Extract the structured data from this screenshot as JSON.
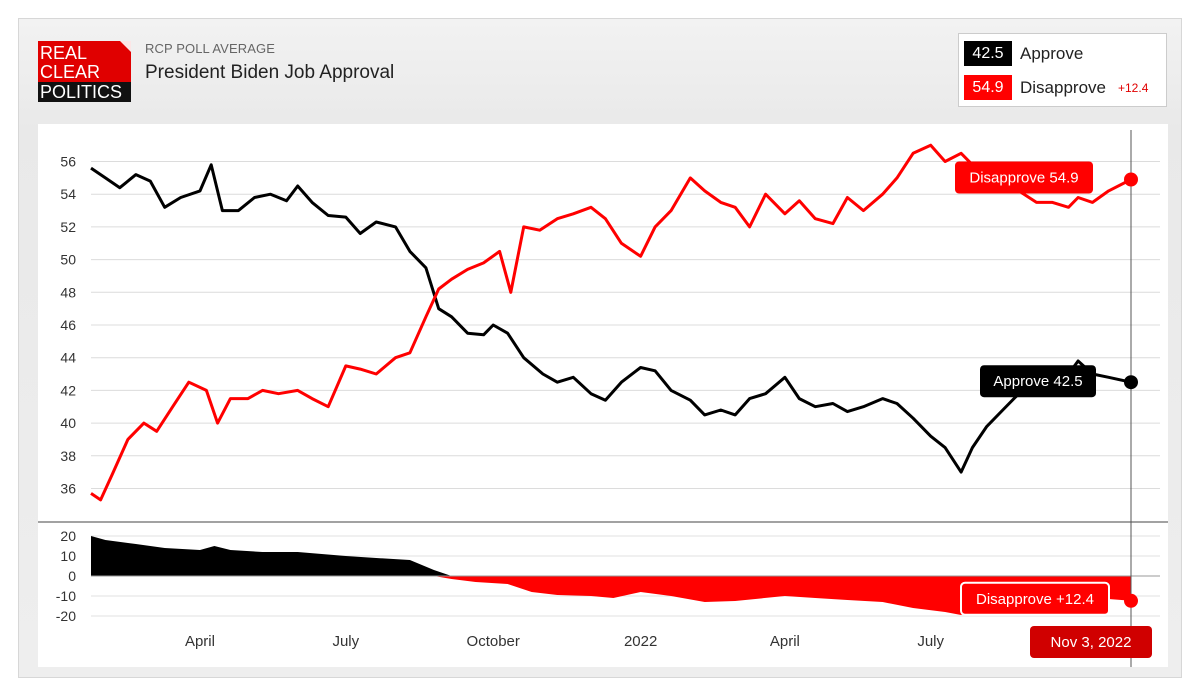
{
  "header": {
    "logo_lines": [
      "REAL",
      "CLEAR",
      "POLITICS"
    ],
    "supertitle": "RCP POLL AVERAGE",
    "title": "President Biden Job Approval"
  },
  "legend": {
    "approve": {
      "value": "42.5",
      "label": "Approve",
      "color": "#000000"
    },
    "disapprove": {
      "value": "54.9",
      "label": "Disapprove",
      "color": "#ff0000",
      "spread": "+12.4"
    }
  },
  "tooltips": {
    "disapprove": "Disapprove 54.9",
    "approve": "Approve 42.5",
    "spread": "Disapprove +12.4",
    "date": "Nov 3, 2022"
  },
  "chart_data": [
    {
      "type": "line",
      "title": "President Biden Job Approval",
      "ylim": [
        34.5,
        57.5
      ],
      "yticks": [
        36,
        38,
        40,
        42,
        44,
        46,
        48,
        50,
        52,
        54,
        56
      ],
      "grid": true,
      "x_tick_labels": [
        "April",
        "July",
        "October",
        "2022",
        "April",
        "July"
      ],
      "x_tick_dates": [
        "2021-04-01",
        "2021-07-01",
        "2021-10-01",
        "2022-01-01",
        "2022-04-01",
        "2022-07-01"
      ],
      "x_range": [
        "2021-01-23",
        "2022-11-03"
      ],
      "series": [
        {
          "name": "Approve",
          "color": "#000000",
          "points": [
            [
              "2021-01-23",
              55.6
            ],
            [
              "2021-02-01",
              55.0
            ],
            [
              "2021-02-10",
              54.4
            ],
            [
              "2021-02-20",
              55.2
            ],
            [
              "2021-03-01",
              54.8
            ],
            [
              "2021-03-10",
              53.2
            ],
            [
              "2021-03-20",
              53.8
            ],
            [
              "2021-04-01",
              54.2
            ],
            [
              "2021-04-08",
              55.8
            ],
            [
              "2021-04-15",
              53.0
            ],
            [
              "2021-04-25",
              53.0
            ],
            [
              "2021-05-05",
              53.8
            ],
            [
              "2021-05-15",
              54.0
            ],
            [
              "2021-05-25",
              53.6
            ],
            [
              "2021-06-01",
              54.5
            ],
            [
              "2021-06-10",
              53.5
            ],
            [
              "2021-06-20",
              52.7
            ],
            [
              "2021-07-01",
              52.6
            ],
            [
              "2021-07-10",
              51.6
            ],
            [
              "2021-07-20",
              52.3
            ],
            [
              "2021-08-01",
              52.0
            ],
            [
              "2021-08-10",
              50.5
            ],
            [
              "2021-08-20",
              49.5
            ],
            [
              "2021-08-28",
              47.0
            ],
            [
              "2021-09-05",
              46.5
            ],
            [
              "2021-09-15",
              45.5
            ],
            [
              "2021-09-25",
              45.4
            ],
            [
              "2021-10-01",
              46.0
            ],
            [
              "2021-10-10",
              45.5
            ],
            [
              "2021-10-20",
              44.0
            ],
            [
              "2021-11-01",
              43.0
            ],
            [
              "2021-11-10",
              42.5
            ],
            [
              "2021-11-20",
              42.8
            ],
            [
              "2021-12-01",
              41.8
            ],
            [
              "2021-12-10",
              41.4
            ],
            [
              "2021-12-20",
              42.5
            ],
            [
              "2022-01-01",
              43.4
            ],
            [
              "2022-01-10",
              43.2
            ],
            [
              "2022-01-20",
              42.0
            ],
            [
              "2022-02-01",
              41.4
            ],
            [
              "2022-02-10",
              40.5
            ],
            [
              "2022-02-20",
              40.8
            ],
            [
              "2022-03-01",
              40.5
            ],
            [
              "2022-03-10",
              41.5
            ],
            [
              "2022-03-20",
              41.8
            ],
            [
              "2022-04-01",
              42.8
            ],
            [
              "2022-04-10",
              41.5
            ],
            [
              "2022-04-20",
              41.0
            ],
            [
              "2022-05-01",
              41.2
            ],
            [
              "2022-05-10",
              40.7
            ],
            [
              "2022-05-20",
              41.0
            ],
            [
              "2022-06-01",
              41.5
            ],
            [
              "2022-06-10",
              41.2
            ],
            [
              "2022-06-20",
              40.3
            ],
            [
              "2022-07-01",
              39.2
            ],
            [
              "2022-07-10",
              38.5
            ],
            [
              "2022-07-20",
              37.0
            ],
            [
              "2022-07-27",
              38.5
            ],
            [
              "2022-08-05",
              39.8
            ],
            [
              "2022-08-15",
              40.8
            ],
            [
              "2022-08-25",
              41.8
            ],
            [
              "2022-09-05",
              42.3
            ],
            [
              "2022-09-15",
              42.5
            ],
            [
              "2022-09-25",
              43.0
            ],
            [
              "2022-10-01",
              43.8
            ],
            [
              "2022-10-10",
              43.0
            ],
            [
              "2022-10-20",
              42.8
            ],
            [
              "2022-11-03",
              42.5
            ]
          ]
        },
        {
          "name": "Disapprove",
          "color": "#ff0000",
          "points": [
            [
              "2021-01-23",
              35.7
            ],
            [
              "2021-01-29",
              35.3
            ],
            [
              "2021-02-05",
              36.8
            ],
            [
              "2021-02-15",
              39.0
            ],
            [
              "2021-02-25",
              40.0
            ],
            [
              "2021-03-05",
              39.5
            ],
            [
              "2021-03-15",
              41.0
            ],
            [
              "2021-03-25",
              42.5
            ],
            [
              "2021-04-05",
              42.0
            ],
            [
              "2021-04-12",
              40.0
            ],
            [
              "2021-04-20",
              41.5
            ],
            [
              "2021-05-01",
              41.5
            ],
            [
              "2021-05-10",
              42.0
            ],
            [
              "2021-05-20",
              41.8
            ],
            [
              "2021-06-01",
              42.0
            ],
            [
              "2021-06-10",
              41.5
            ],
            [
              "2021-06-20",
              41.0
            ],
            [
              "2021-07-01",
              43.5
            ],
            [
              "2021-07-10",
              43.3
            ],
            [
              "2021-07-20",
              43.0
            ],
            [
              "2021-08-01",
              44.0
            ],
            [
              "2021-08-10",
              44.3
            ],
            [
              "2021-08-20",
              46.5
            ],
            [
              "2021-08-28",
              48.2
            ],
            [
              "2021-09-05",
              48.8
            ],
            [
              "2021-09-15",
              49.4
            ],
            [
              "2021-09-25",
              49.8
            ],
            [
              "2021-10-05",
              50.5
            ],
            [
              "2021-10-12",
              48.0
            ],
            [
              "2021-10-20",
              52.0
            ],
            [
              "2021-10-30",
              51.8
            ],
            [
              "2021-11-10",
              52.5
            ],
            [
              "2021-11-20",
              52.8
            ],
            [
              "2021-12-01",
              53.2
            ],
            [
              "2021-12-10",
              52.5
            ],
            [
              "2021-12-20",
              51.0
            ],
            [
              "2022-01-01",
              50.2
            ],
            [
              "2022-01-10",
              52.0
            ],
            [
              "2022-01-20",
              53.0
            ],
            [
              "2022-02-01",
              55.0
            ],
            [
              "2022-02-10",
              54.2
            ],
            [
              "2022-02-20",
              53.5
            ],
            [
              "2022-03-01",
              53.2
            ],
            [
              "2022-03-10",
              52.0
            ],
            [
              "2022-03-20",
              54.0
            ],
            [
              "2022-04-01",
              52.8
            ],
            [
              "2022-04-10",
              53.6
            ],
            [
              "2022-04-20",
              52.5
            ],
            [
              "2022-05-01",
              52.2
            ],
            [
              "2022-05-10",
              53.8
            ],
            [
              "2022-05-20",
              53.0
            ],
            [
              "2022-06-01",
              54.0
            ],
            [
              "2022-06-10",
              55.0
            ],
            [
              "2022-06-20",
              56.5
            ],
            [
              "2022-07-01",
              57.0
            ],
            [
              "2022-07-10",
              56.0
            ],
            [
              "2022-07-20",
              56.5
            ],
            [
              "2022-07-27",
              55.8
            ],
            [
              "2022-08-05",
              55.4
            ],
            [
              "2022-08-15",
              55.0
            ],
            [
              "2022-08-25",
              54.2
            ],
            [
              "2022-09-05",
              53.5
            ],
            [
              "2022-09-15",
              53.5
            ],
            [
              "2022-09-25",
              53.2
            ],
            [
              "2022-10-01",
              53.8
            ],
            [
              "2022-10-10",
              53.5
            ],
            [
              "2022-10-20",
              54.2
            ],
            [
              "2022-11-03",
              54.9
            ]
          ]
        }
      ]
    },
    {
      "type": "area",
      "title": "",
      "ylim": [
        -23,
        23
      ],
      "yticks": [
        20,
        10,
        0,
        -10,
        -20
      ],
      "series": [
        {
          "name": "Spread",
          "colors": {
            "positive": "#000000",
            "negative": "#ff0000"
          },
          "points": [
            [
              "2021-01-23",
              20.0
            ],
            [
              "2021-02-01",
              18.0
            ],
            [
              "2021-02-20",
              16.0
            ],
            [
              "2021-03-10",
              14.0
            ],
            [
              "2021-04-01",
              13.0
            ],
            [
              "2021-04-10",
              15.0
            ],
            [
              "2021-04-20",
              13.0
            ],
            [
              "2021-05-10",
              12.0
            ],
            [
              "2021-06-01",
              12.0
            ],
            [
              "2021-07-01",
              10.0
            ],
            [
              "2021-07-20",
              9.0
            ],
            [
              "2021-08-10",
              8.0
            ],
            [
              "2021-08-25",
              3.0
            ],
            [
              "2021-09-05",
              -1.5
            ],
            [
              "2021-09-20",
              -3.0
            ],
            [
              "2021-10-10",
              -4.0
            ],
            [
              "2021-10-25",
              -8.0
            ],
            [
              "2021-11-10",
              -9.5
            ],
            [
              "2021-12-01",
              -10.0
            ],
            [
              "2021-12-15",
              -11.0
            ],
            [
              "2022-01-01",
              -8.0
            ],
            [
              "2022-01-20",
              -10.0
            ],
            [
              "2022-02-10",
              -13.0
            ],
            [
              "2022-03-01",
              -12.5
            ],
            [
              "2022-04-01",
              -10.0
            ],
            [
              "2022-04-20",
              -11.0
            ],
            [
              "2022-05-10",
              -12.0
            ],
            [
              "2022-06-01",
              -13.0
            ],
            [
              "2022-06-20",
              -16.0
            ],
            [
              "2022-07-10",
              -18.0
            ],
            [
              "2022-07-20",
              -19.5
            ],
            [
              "2022-08-05",
              -17.0
            ],
            [
              "2022-08-25",
              -14.5
            ],
            [
              "2022-09-15",
              -12.0
            ],
            [
              "2022-10-05",
              -10.0
            ],
            [
              "2022-10-20",
              -11.5
            ],
            [
              "2022-11-03",
              -12.4
            ]
          ]
        }
      ]
    }
  ]
}
